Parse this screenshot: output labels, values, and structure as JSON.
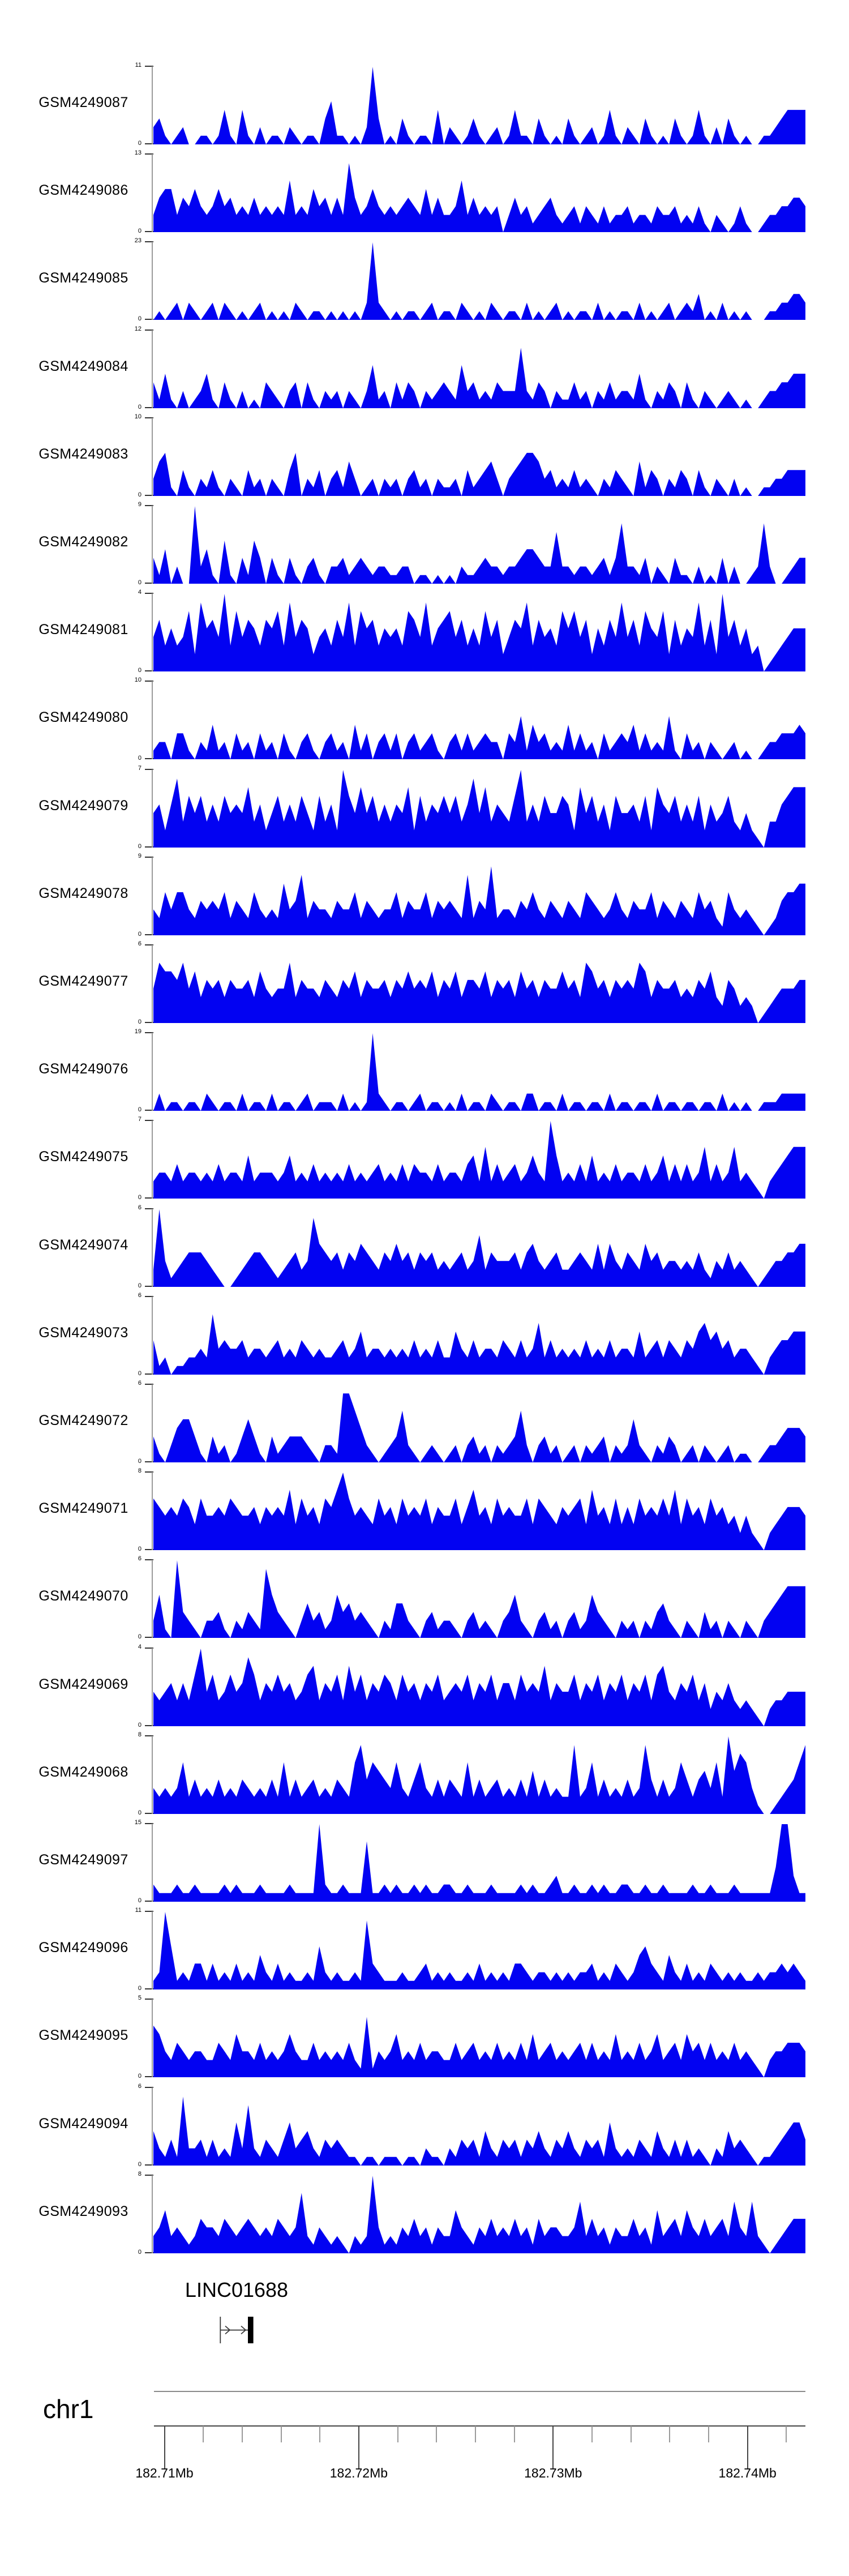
{
  "chart_data": {
    "type": "area",
    "description": "Genome browser coverage tracks (read-depth profiles) over chr1:182.71-182.74Mb with LINC01688 gene annotation",
    "chromosome": "chr1",
    "fill_color": "#0202F2",
    "gene_track": {
      "gene": "LINC01688"
    },
    "x_axis": {
      "unit": "Mb",
      "tick_labels": [
        "182.71Mb",
        "182.72Mb",
        "182.73Mb",
        "182.74Mb"
      ],
      "minor_ticks_between_majors": 4,
      "trailing_minor_ticks": 1,
      "range_mb": [
        182.7095,
        182.743
      ]
    },
    "y_axis": {
      "min_label": "0"
    },
    "tracks": [
      {
        "name": "GSM4249087",
        "ymax": 11,
        "ymin": 0,
        "profile": "2310120011014104102011021011035110102930103101104021013101201411031010310120141021031010310141020310100112344 44"
      },
      {
        "name": "GSM4249086",
        "ymax": 13,
        "ymin": 0,
        "profile": "24552435323534232423232623253424284235323234325242236242323024231234212313213122312213223121310210131001223 3443"
      },
      {
        "name": "GSM4249085",
        "ymax": 23,
        "ymin": 0,
        "profile": "0101202101202101012010102101101010102921010110120110210102101102010120101102010110201012012130102010100011223 32"
      },
      {
        "name": "GSM4249084",
        "ymax": 12,
        "ymin": 0,
        "profile": "3141020124103102010321023031021202102512031320212321523121322272132021131202131221410213203102101210100122334 44"
      },
      {
        "name": "GSM4249083",
        "ymax": 10,
        "ymin": 0,
        "profile": "2451031021310210312021035021302314201202120231202112031234202345542312131210213210413202132031021020100112233 33"
      },
      {
        "name": "GSM4249082",
        "ymax": 9,
        "ymin": 0,
        "profile": "3140200924105103153031031023102231232122112201101010211232212234432262212212313722130210311020103020012720012 33"
      },
      {
        "name": "GSM4249081",
        "ymax": 4,
        "ymin": 0,
        "profile": "4635347285649374653657384652453648375635453764835674635374624658364537574625364846375472635483629463523012345 55"
      },
      {
        "name": "GSM4249080",
        "ymax": 10,
        "ymin": 0,
        "profile": "1220331021412031203120310231023120413023130231231023131232203251423121413120312324131215103120210120100122333 43"
      },
      {
        "name": "GSM4249079",
        "ymax": 7,
        "ymin": 0,
        "profile": "4525836463536454735246353642635296474635354726354646358473543693536446527463526445362754635362534632421033567 77"
      },
      {
        "name": "GSM4249078",
        "ymax": 9,
        "ymin": 0,
        "profile": "3253553243435243253232634724332433524323352433524343272438233243532432432543235324335243243253421532321012455 66"
      },
      {
        "name": "GSM4249077",
        "ymax": 6,
        "ymin": 0,
        "profile": "4766574635453544536434473544354354635445354645463546355463545364535446453764535454763544534354632542320123444 55"
      },
      {
        "name": "GSM4249076",
        "ymax": 19,
        "ymin": 0,
        "profile": "0201101102101102011020110120111020101921011012011010201102101102201102011011020110110201101101102010100111222 22"
      },
      {
        "name": "GSM4249075",
        "ymax": 7,
        "ymin": 0,
        "profile": "2332423323242332523332352324232324232342324243324233245262423423532952324252324233242352424236242362321023456 66"
      },
      {
        "name": "GSM4249074",
        "ymax": 6,
        "ymin": 0,
        "profile": "2931234443210012344321234238543424354324353424342323423624333424532342234325253243253423323242132423210123344 55"
      },
      {
        "name": "GSM4249073",
        "ymax": 6,
        "ymin": 0,
        "profile": "4120112232734334233234232432322342352332323242324225324233243242362423232423242332523424324356453423321023445 55"
      },
      {
        "name": "GSM4249072",
        "ymax": 6,
        "ymin": 0,
        "profile": "3102455310312013531031233321022188642101236210121012023120212362023120120212302125210213201202101201100122344 43"
      },
      {
        "name": "GSM4249071",
        "ymax": 8,
        "ymin": 0,
        "profile": "6545465364454654453545473645365796454364536454635446357453645446365435456374536353645464736453645342421023455 54"
      },
      {
        "name": "GSM4249070",
        "ymax": 6,
        "ymin": 0,
        "profile": "2510932102231021321853210242312534232102144210231221023121023521023120231253210212021342102103120210210234566 66"
      },
      {
        "name": "GSM4249069",
        "ymax": 4,
        "ymin": 0,
        "profile": "4345353694634645863546453467354637463546536453546345463546355364547354463546354635463674354635243532321023344 44"
      },
      {
        "name": "GSM4249068",
        "ymax": 8,
        "ymin": 0,
        "profile": "3232362423242324323242624234232432684654363246324243262423423242524232282362423242384242364245362957631001234 68"
      },
      {
        "name": "GSM4249097",
        "ymax": 15,
        "ymin": 0,
        "profile": "2111211211112121112111121111921121117112121121211221121112111121211231121121211221121121111211211121111114993 11"
      },
      {
        "name": "GSM4249096",
        "ymax": 11,
        "ymin": 0,
        "profile": "1295121331312131214213121121521211218321112112312121121312121332122121212231213212453214213121321212112122323 21"
      },
      {
        "name": "GSM4249095",
        "ymax": 5,
        "ymin": 0,
        "profile": "6532432332243253324232353224232324217132352324233224234232423242523423234242325232423523425342423242321023344 43"
      },
      {
        "name": "GSM4249094",
        "ymax": 6,
        "ymin": 0,
        "profile": "4213182231312152721321352342132321101101110110211021323142132313242132421323152121321421313121021423210112345 53"
      },
      {
        "name": "GSM4249093",
        "ymax": 8,
        "ymin": 0,
        "profile": "2352321243324323432324323721321210212931213242313225321324232423142332236242313224231523425324234263262101234 44"
      }
    ]
  }
}
